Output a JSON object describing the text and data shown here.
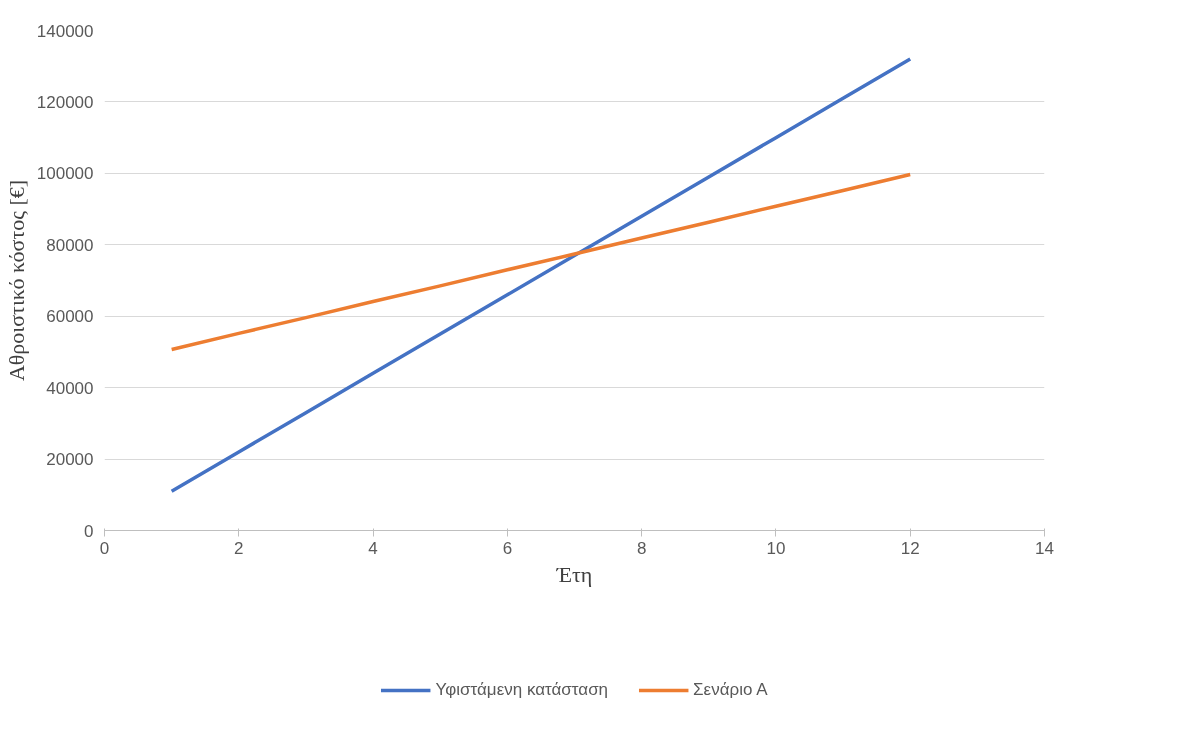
{
  "chart_data": {
    "type": "line",
    "xlabel": "Έτη",
    "ylabel": "Αθροιστικό κόστος [€]",
    "x": [
      1,
      2,
      3,
      4,
      5,
      6,
      7,
      8,
      9,
      10,
      11,
      12
    ],
    "series": [
      {
        "name": "Υφιστάμενη κατάσταση",
        "color": "#4472c4",
        "values": [
          11000,
          22000,
          33000,
          44000,
          55000,
          66000,
          77000,
          88000,
          99000,
          110000,
          121000,
          132000
        ]
      },
      {
        "name": "Σενάριο Α",
        "color": "#ed7d31",
        "values": [
          50700,
          55200,
          59600,
          64100,
          68500,
          73000,
          77400,
          81900,
          86300,
          90800,
          95200,
          99700
        ]
      }
    ],
    "xlim": [
      0,
      14
    ],
    "xticks": [
      0,
      2,
      4,
      6,
      8,
      10,
      12,
      14
    ],
    "ylim": [
      0,
      140000
    ],
    "yticks": [
      0,
      20000,
      40000,
      60000,
      80000,
      100000,
      120000,
      140000
    ],
    "grid": "y",
    "legend": "bottom",
    "marker": "none",
    "line_style": "solid"
  }
}
